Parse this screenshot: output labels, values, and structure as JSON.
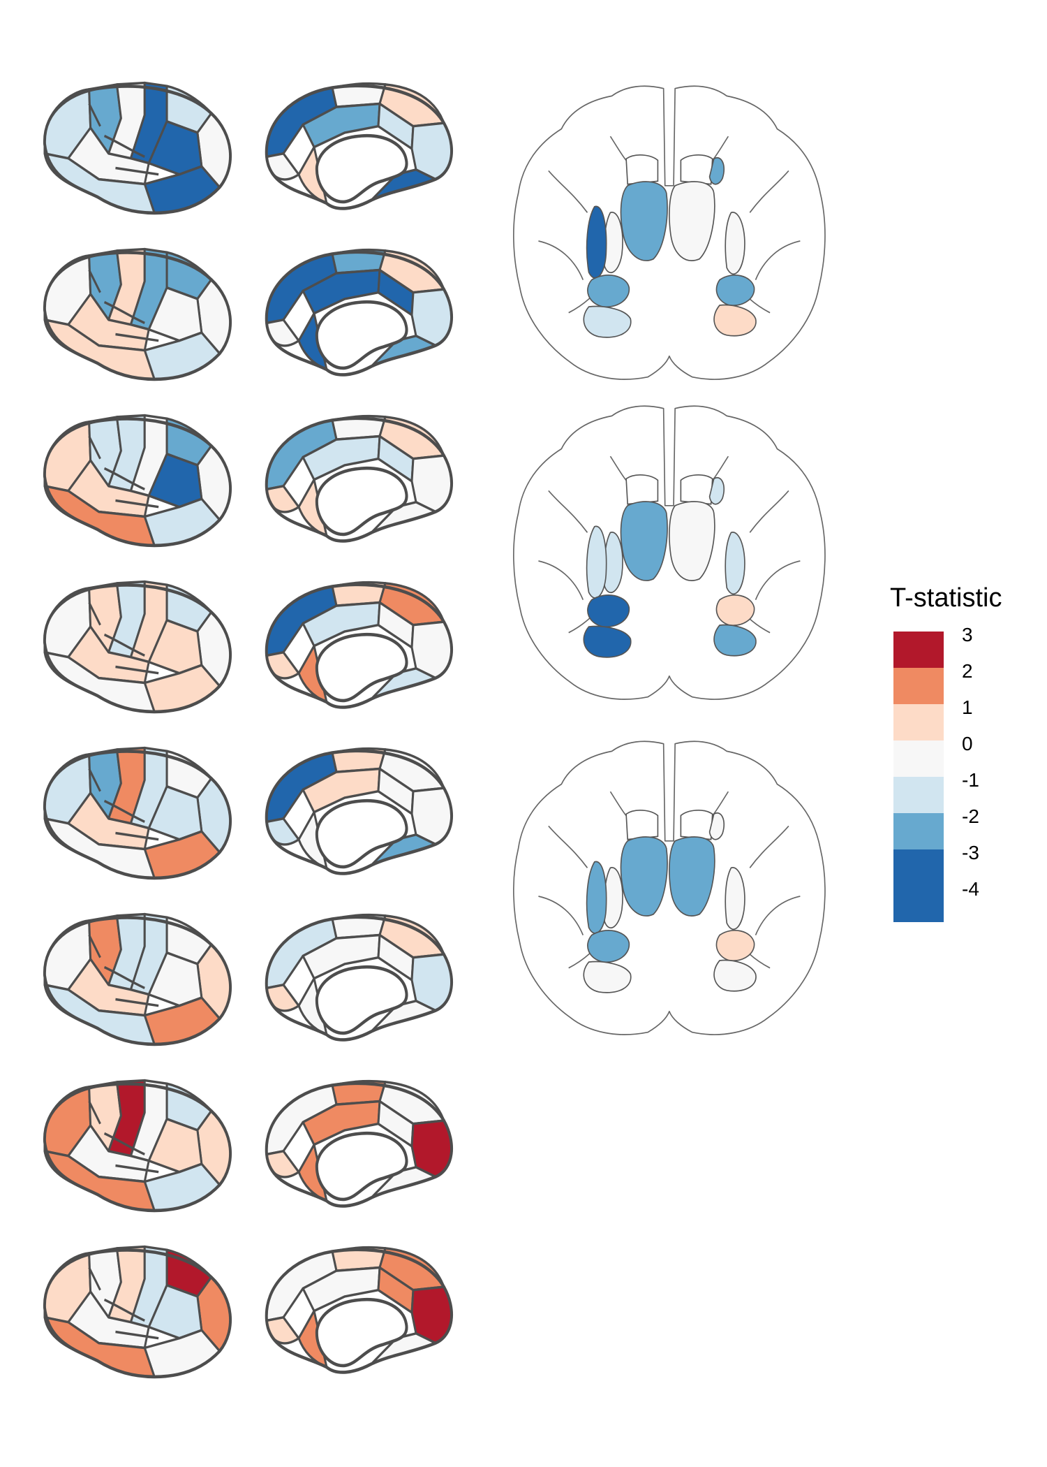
{
  "legend": {
    "title": "T-statistic",
    "items": [
      {
        "label": "3",
        "color": "#b2182b"
      },
      {
        "label": "2",
        "color": "#ef8a62"
      },
      {
        "label": "1",
        "color": "#fddbc7"
      },
      {
        "label": "0",
        "color": "#f7f7f7"
      },
      {
        "label": "-1",
        "color": "#d1e5f0"
      },
      {
        "label": "-2",
        "color": "#67a9cf"
      },
      {
        "label": "-3",
        "color": "#2166ac"
      },
      {
        "label": "-4",
        "color": "#2166ac"
      }
    ]
  },
  "cortex_rows": [
    {
      "lateral": [
        -1,
        -2,
        0,
        -3,
        -1,
        0,
        0,
        -3,
        -3,
        -1
      ],
      "medial": [
        0,
        1,
        -3,
        -2,
        -1,
        -1,
        0,
        1,
        -3
      ]
    },
    {
      "lateral": [
        0,
        -2,
        1,
        -2,
        -2,
        0,
        1,
        0,
        -1,
        1
      ],
      "medial": [
        -2,
        1,
        -3,
        -3,
        -3,
        -1,
        0,
        -3,
        -2
      ]
    },
    {
      "lateral": [
        1,
        -1,
        -1,
        0,
        -2,
        0,
        1,
        -3,
        -1,
        2
      ],
      "medial": [
        0,
        1,
        -2,
        -1,
        -1,
        0,
        1,
        1,
        0
      ]
    },
    {
      "lateral": [
        0,
        1,
        -1,
        1,
        -1,
        0,
        1,
        1,
        1,
        0
      ],
      "medial": [
        1,
        2,
        -3,
        -1,
        0,
        0,
        1,
        2,
        -1
      ]
    },
    {
      "lateral": [
        -1,
        -2,
        2,
        -1,
        0,
        -1,
        1,
        -1,
        2,
        0
      ],
      "medial": [
        1,
        0,
        -3,
        1,
        0,
        0,
        -1,
        0,
        -2
      ]
    },
    {
      "lateral": [
        0,
        2,
        -1,
        -1,
        0,
        1,
        1,
        0,
        2,
        -1
      ],
      "medial": [
        0,
        1,
        -1,
        0,
        0,
        -1,
        1,
        0,
        0
      ]
    },
    {
      "lateral": [
        2,
        1,
        3,
        0,
        -1,
        1,
        0,
        1,
        -1,
        2
      ],
      "medial": [
        2,
        0,
        0,
        2,
        0,
        3,
        1,
        2,
        0
      ]
    },
    {
      "lateral": [
        1,
        0,
        1,
        -1,
        3,
        2,
        0,
        -1,
        0,
        2
      ],
      "medial": [
        1,
        2,
        0,
        0,
        2,
        3,
        1,
        2,
        0
      ]
    }
  ],
  "subcortical_slices": [
    {
      "left_putamen": -3,
      "left_pallidum": 0,
      "left_amygdala": -2,
      "left_hippocampus": -1,
      "left_thalamus": -2,
      "right_thalamus": 0,
      "right_caudate": -2,
      "right_putamen": 0,
      "right_amygdala": -2,
      "right_hippocampus": 1
    },
    {
      "left_putamen": -1,
      "left_pallidum": -1,
      "left_amygdala": -3,
      "left_hippocampus": -3,
      "left_thalamus": -2,
      "right_thalamus": 0,
      "right_caudate": -1,
      "right_putamen": -1,
      "right_amygdala": 1,
      "right_hippocampus": -2
    },
    {
      "left_putamen": -2,
      "left_pallidum": 0,
      "left_amygdala": -2,
      "left_hippocampus": 0,
      "left_thalamus": -2,
      "right_thalamus": -2,
      "right_caudate": 0,
      "right_putamen": 0,
      "right_amygdala": 1,
      "right_hippocampus": 0
    }
  ]
}
